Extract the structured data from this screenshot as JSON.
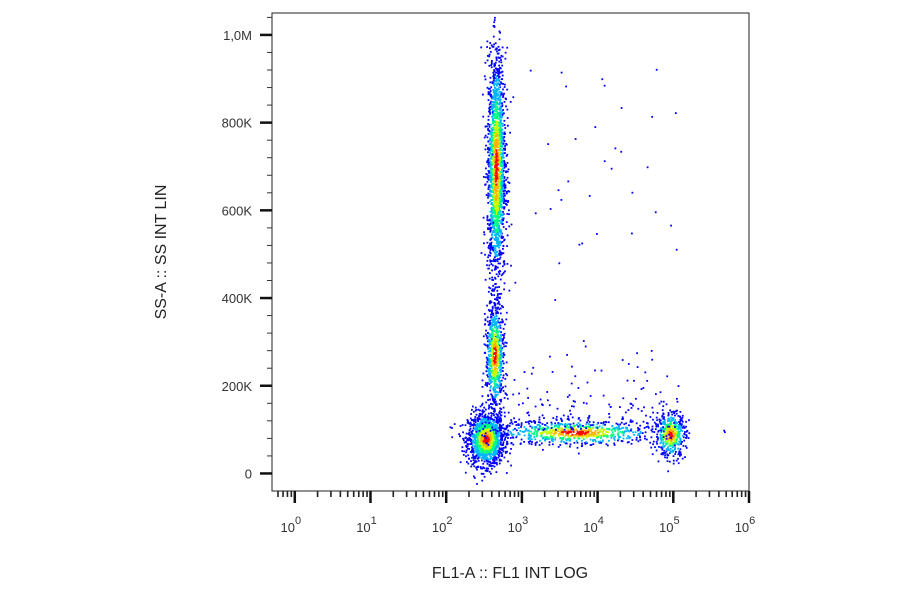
{
  "chart_data": {
    "type": "scatter",
    "title": "",
    "xlabel": "FL1-A :: FL1 INT LOG",
    "ylabel": "SS-A :: SS INT LIN",
    "x_scale": "log",
    "xlim": [
      0.5,
      1000000
    ],
    "ylim": [
      -40000,
      1050000
    ],
    "x_ticks": [
      {
        "value": 1,
        "base": "10",
        "exp": "0"
      },
      {
        "value": 10,
        "base": "10",
        "exp": "1"
      },
      {
        "value": 100,
        "base": "10",
        "exp": "2"
      },
      {
        "value": 1000,
        "base": "10",
        "exp": "3"
      },
      {
        "value": 10000,
        "base": "10",
        "exp": "4"
      },
      {
        "value": 100000,
        "base": "10",
        "exp": "5"
      },
      {
        "value": 1000000,
        "base": "10",
        "exp": "6"
      }
    ],
    "y_ticks": [
      {
        "value": 0,
        "label": "0"
      },
      {
        "value": 200000,
        "label": "200K"
      },
      {
        "value": 400000,
        "label": "400K"
      },
      {
        "value": 600000,
        "label": "600K"
      },
      {
        "value": 800000,
        "label": "800K"
      },
      {
        "value": 1000000,
        "label": "1,0M"
      }
    ],
    "grid": false,
    "color_scale": [
      "#0000ff",
      "#00b4ff",
      "#00ff80",
      "#c8ff00",
      "#ffb400",
      "#ff0000"
    ],
    "populations": [
      {
        "x_center": 330,
        "x_spread_log": 0.12,
        "y_center": 80000,
        "y_spread": 30000,
        "count": 1400
      },
      {
        "x_center": 450,
        "x_spread_log": 0.06,
        "y_center": 700000,
        "y_spread": 130000,
        "count": 1800
      },
      {
        "x_center": 430,
        "x_spread_log": 0.06,
        "y_center": 270000,
        "y_spread": 60000,
        "count": 700
      },
      {
        "x_center": 90000,
        "x_spread_log": 0.1,
        "y_center": 90000,
        "y_spread": 25000,
        "count": 450
      },
      {
        "x_center": 5000,
        "x_spread_log": 0.55,
        "y_center": 95000,
        "y_spread": 14000,
        "count": 700
      }
    ]
  }
}
